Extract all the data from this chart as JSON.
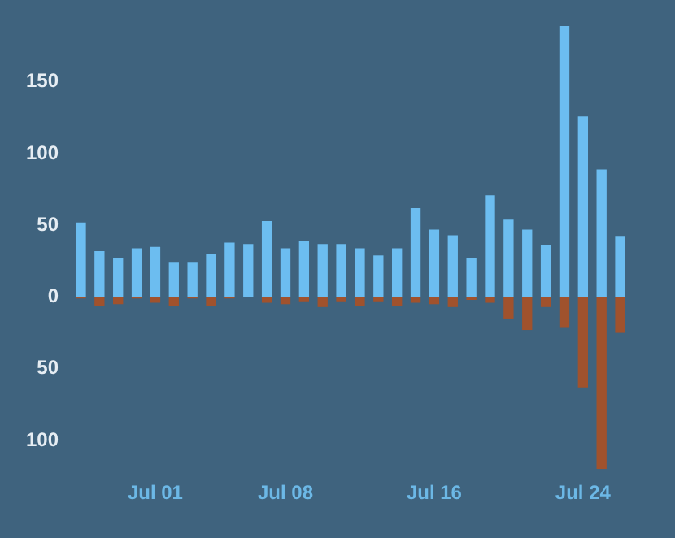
{
  "chart_data": {
    "type": "bar",
    "stacked": true,
    "categories": [
      null,
      null,
      null,
      null,
      "Jul 01",
      null,
      null,
      null,
      null,
      null,
      null,
      "Jul 08",
      null,
      null,
      null,
      null,
      null,
      null,
      null,
      "Jul 16",
      null,
      null,
      null,
      null,
      null,
      null,
      null,
      "Jul 24",
      null,
      null
    ],
    "series": [
      {
        "color": "#6cbdf0",
        "values": [
          52,
          32,
          27,
          34,
          35,
          24,
          24,
          30,
          38,
          37,
          53,
          34,
          39,
          37,
          37,
          34,
          29,
          34,
          62,
          47,
          43,
          27,
          71,
          54,
          47,
          36,
          189,
          126,
          89,
          42
        ]
      },
      {
        "color": "#a0522d",
        "values": [
          -1,
          -6,
          -5,
          -1,
          -4,
          -6,
          -1,
          -6,
          -1,
          0,
          -4,
          -5,
          -3,
          -7,
          -3,
          -6,
          -3,
          -6,
          -4,
          -5,
          -7,
          -2,
          -4,
          -15,
          -23,
          -7,
          -21,
          -63,
          -120,
          -25
        ]
      }
    ],
    "ylim": [
      -120,
      189
    ],
    "yticks": [
      {
        "value": -100,
        "label": "100"
      },
      {
        "value": -50,
        "label": "50"
      },
      0,
      50,
      100,
      150
    ],
    "grid": false,
    "legend": false
  }
}
